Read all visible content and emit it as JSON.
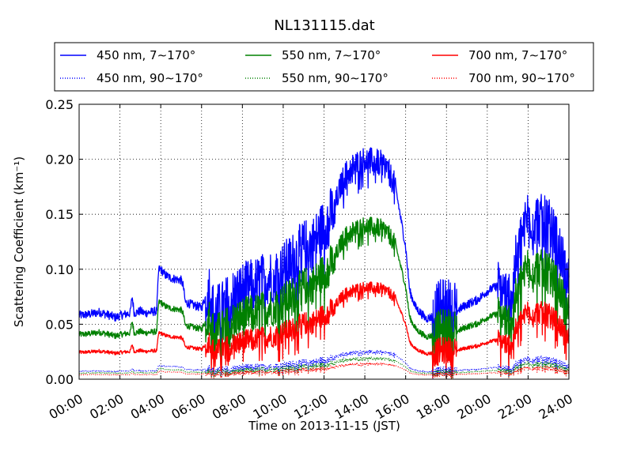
{
  "chart_data": {
    "type": "line",
    "title": "NL131115.dat",
    "xlabel": "Time on 2013-11-15 (JST)",
    "ylabel": "Scattering Coefficient (km⁻¹)",
    "xlim": [
      0,
      24
    ],
    "ylim": [
      0,
      0.25
    ],
    "x_ticks": [
      "00:00",
      "02:00",
      "04:00",
      "06:00",
      "08:00",
      "10:00",
      "12:00",
      "14:00",
      "16:00",
      "18:00",
      "20:00",
      "22:00",
      "24:00"
    ],
    "y_ticks": [
      "0.00",
      "0.05",
      "0.10",
      "0.15",
      "0.20",
      "0.25"
    ],
    "grid": true,
    "legend_position": "top",
    "series": [
      {
        "name": "450 nm, 7∼170°",
        "color": "#0000ff",
        "style": "solid",
        "scale": 1.0
      },
      {
        "name": "550 nm, 7∼170°",
        "color": "#008000",
        "style": "solid",
        "scale": 0.7
      },
      {
        "name": "700 nm, 7∼170°",
        "color": "#ff0000",
        "style": "solid",
        "scale": 0.42
      },
      {
        "name": "450 nm, 90∼170°",
        "color": "#0000ff",
        "style": "dotted",
        "scale": 0.125
      },
      {
        "name": "550 nm, 90∼170°",
        "color": "#008000",
        "style": "dotted",
        "scale": 0.095
      },
      {
        "name": "700 nm, 90∼170°",
        "color": "#ff0000",
        "style": "dotted",
        "scale": 0.07
      }
    ],
    "base_profile_450": {
      "x": [
        0,
        0.5,
        1,
        1.5,
        1.8,
        2.0,
        2.5,
        2.6,
        2.7,
        3.0,
        3.2,
        3.5,
        3.8,
        3.9,
        4.0,
        4.2,
        4.5,
        5.0,
        5.1,
        5.2,
        5.5,
        6.0,
        6.2,
        6.4,
        6.6,
        7.0,
        7.5,
        8.0,
        8.5,
        9.0,
        9.5,
        10.0,
        10.5,
        11.0,
        11.5,
        12.0,
        12.5,
        12.8,
        13.0,
        13.2,
        13.5,
        14.0,
        14.5,
        15.0,
        15.5,
        16.0,
        16.2,
        16.5,
        17.0,
        17.5,
        17.8,
        18.0,
        18.2,
        18.5,
        19.0,
        19.5,
        20.0,
        20.5,
        21.0,
        21.2,
        21.5,
        22.0,
        22.5,
        23.0,
        23.5,
        24.0
      ],
      "y": [
        0.058,
        0.059,
        0.061,
        0.058,
        0.056,
        0.058,
        0.06,
        0.075,
        0.06,
        0.062,
        0.06,
        0.061,
        0.062,
        0.1,
        0.1,
        0.095,
        0.092,
        0.09,
        0.085,
        0.07,
        0.068,
        0.065,
        0.075,
        0.085,
        0.06,
        0.065,
        0.075,
        0.082,
        0.085,
        0.09,
        0.095,
        0.1,
        0.11,
        0.12,
        0.125,
        0.14,
        0.155,
        0.175,
        0.185,
        0.19,
        0.195,
        0.2,
        0.198,
        0.195,
        0.175,
        0.12,
        0.08,
        0.065,
        0.055,
        0.058,
        0.062,
        0.065,
        0.06,
        0.062,
        0.068,
        0.072,
        0.08,
        0.085,
        0.075,
        0.08,
        0.12,
        0.15,
        0.145,
        0.14,
        0.12,
        0.085
      ]
    }
  }
}
